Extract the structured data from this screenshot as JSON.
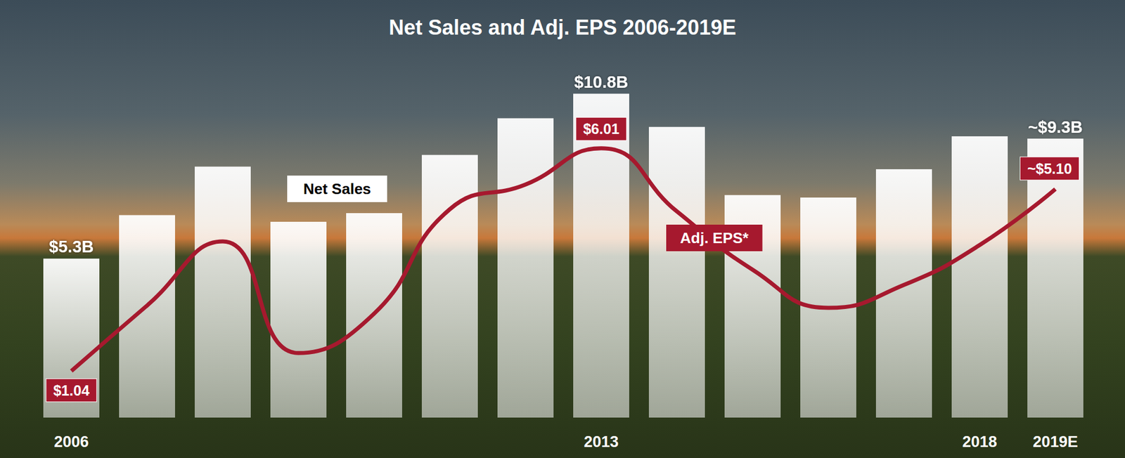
{
  "chart_data": {
    "type": "bar",
    "title": "Net Sales and Adj. EPS 2006-2019E",
    "categories": [
      "2006",
      null,
      null,
      null,
      null,
      null,
      null,
      "2013",
      null,
      null,
      null,
      null,
      "2018",
      "2019E"
    ],
    "series": [
      {
        "name": "Net Sales",
        "type": "bar",
        "color": "#ffffff",
        "values": [
          5.3,
          6.75,
          8.37,
          6.53,
          6.82,
          8.76,
          9.98,
          10.8,
          9.69,
          7.42,
          7.34,
          8.28,
          9.38,
          9.3
        ],
        "value_labels": [
          "$5.3B",
          null,
          null,
          null,
          null,
          null,
          null,
          "$10.8B",
          null,
          null,
          null,
          null,
          null,
          "~$9.3B"
        ]
      },
      {
        "name": "Adj. EPS*",
        "type": "line",
        "axis": "y2",
        "color": "#a6192e",
        "line_style": "solid",
        "values": [
          1.04,
          2.5,
          3.93,
          1.44,
          2.32,
          4.65,
          5.2,
          6.01,
          4.6,
          3.3,
          2.45,
          2.96,
          3.85,
          5.1
        ],
        "value_labels": [
          "$1.04",
          null,
          null,
          null,
          null,
          null,
          null,
          "$6.01",
          null,
          null,
          null,
          null,
          null,
          "~$5.10"
        ]
      }
    ],
    "ylim": [
      0,
      13
    ],
    "y2lim": [
      0,
      8.7
    ],
    "data_labels": true,
    "tick_labels": "x",
    "grid": false
  }
}
